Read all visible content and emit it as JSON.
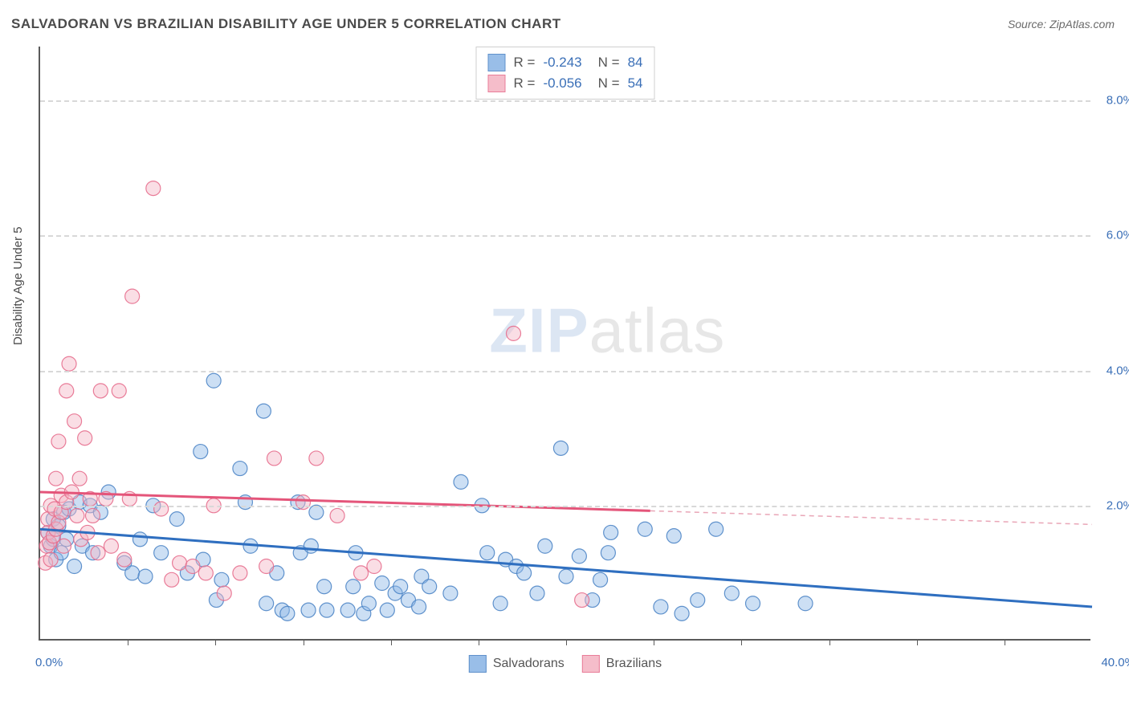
{
  "title": "SALVADORAN VS BRAZILIAN DISABILITY AGE UNDER 5 CORRELATION CHART",
  "source_label": "Source:",
  "source_name": "ZipAtlas.com",
  "ylabel": "Disability Age Under 5",
  "watermark_a": "ZIP",
  "watermark_b": "atlas",
  "chart": {
    "type": "scatter",
    "xlim": [
      0,
      40
    ],
    "ylim": [
      0,
      8.8
    ],
    "xticks_major": [
      0,
      40
    ],
    "xticks_minor": [
      3.33,
      6.67,
      10,
      13.33,
      16.67,
      20,
      23.33,
      26.67,
      30,
      33.33,
      36.67
    ],
    "yticks": [
      2,
      4,
      6,
      8
    ],
    "xtick_labels": [
      "0.0%",
      "40.0%"
    ],
    "ytick_labels": [
      "2.0%",
      "4.0%",
      "6.0%",
      "8.0%"
    ],
    "background_color": "#ffffff",
    "grid_color": "#d8d8d8",
    "axis_color": "#5a5a5a",
    "tick_label_color": "#3a6fb7",
    "label_fontsize": 15,
    "title_fontsize": 17,
    "marker_radius": 9,
    "marker_fill_opacity": 0.45,
    "marker_stroke_opacity": 0.9,
    "series": [
      {
        "name": "Salvadorans",
        "color_fill": "#8fb7e6",
        "color_stroke": "#4f86c6",
        "trend": {
          "y0": 1.65,
          "y1": 0.5,
          "x_solid_end": 40,
          "line_color": "#2f6fc0",
          "line_width": 3
        },
        "stats": {
          "R": "-0.243",
          "N": "84"
        },
        "points": [
          [
            0.3,
            1.6
          ],
          [
            0.4,
            1.4
          ],
          [
            0.5,
            1.5
          ],
          [
            0.5,
            1.8
          ],
          [
            0.6,
            1.2
          ],
          [
            0.7,
            1.7
          ],
          [
            0.8,
            1.3
          ],
          [
            0.9,
            1.9
          ],
          [
            1.0,
            1.5
          ],
          [
            1.1,
            1.95
          ],
          [
            1.3,
            1.1
          ],
          [
            1.5,
            2.05
          ],
          [
            1.6,
            1.4
          ],
          [
            1.9,
            2.0
          ],
          [
            2.0,
            1.3
          ],
          [
            2.3,
            1.9
          ],
          [
            2.6,
            2.2
          ],
          [
            3.2,
            1.15
          ],
          [
            3.5,
            1.0
          ],
          [
            3.8,
            1.5
          ],
          [
            4.0,
            0.95
          ],
          [
            4.3,
            2.0
          ],
          [
            4.6,
            1.3
          ],
          [
            5.2,
            1.8
          ],
          [
            5.6,
            1.0
          ],
          [
            6.1,
            2.8
          ],
          [
            6.2,
            1.2
          ],
          [
            6.6,
            3.85
          ],
          [
            6.7,
            0.6
          ],
          [
            6.9,
            0.9
          ],
          [
            7.6,
            2.55
          ],
          [
            7.8,
            2.05
          ],
          [
            8.0,
            1.4
          ],
          [
            8.5,
            3.4
          ],
          [
            8.6,
            0.55
          ],
          [
            9.0,
            1.0
          ],
          [
            9.2,
            0.45
          ],
          [
            9.4,
            0.4
          ],
          [
            9.8,
            2.05
          ],
          [
            9.9,
            1.3
          ],
          [
            10.2,
            0.45
          ],
          [
            10.3,
            1.4
          ],
          [
            10.5,
            1.9
          ],
          [
            10.8,
            0.8
          ],
          [
            10.9,
            0.45
          ],
          [
            11.7,
            0.45
          ],
          [
            11.9,
            0.8
          ],
          [
            12.0,
            1.3
          ],
          [
            12.3,
            0.4
          ],
          [
            12.5,
            0.55
          ],
          [
            13.0,
            0.85
          ],
          [
            13.2,
            0.45
          ],
          [
            13.5,
            0.7
          ],
          [
            13.7,
            0.8
          ],
          [
            14.0,
            0.6
          ],
          [
            14.4,
            0.5
          ],
          [
            14.5,
            0.95
          ],
          [
            14.8,
            0.8
          ],
          [
            15.6,
            0.7
          ],
          [
            16.0,
            2.35
          ],
          [
            16.8,
            2.0
          ],
          [
            17.0,
            1.3
          ],
          [
            17.5,
            0.55
          ],
          [
            17.7,
            1.2
          ],
          [
            18.1,
            1.1
          ],
          [
            18.4,
            1.0
          ],
          [
            18.9,
            0.7
          ],
          [
            19.2,
            1.4
          ],
          [
            19.8,
            2.85
          ],
          [
            20.0,
            0.95
          ],
          [
            20.5,
            1.25
          ],
          [
            21.0,
            0.6
          ],
          [
            21.3,
            0.9
          ],
          [
            21.6,
            1.3
          ],
          [
            21.7,
            1.6
          ],
          [
            23.0,
            1.65
          ],
          [
            23.6,
            0.5
          ],
          [
            24.1,
            1.55
          ],
          [
            24.4,
            0.4
          ],
          [
            25.7,
            1.65
          ],
          [
            27.1,
            0.55
          ],
          [
            29.1,
            0.55
          ],
          [
            25.0,
            0.6
          ],
          [
            26.3,
            0.7
          ]
        ]
      },
      {
        "name": "Brazilians",
        "color_fill": "#f4b6c5",
        "color_stroke": "#e76f8e",
        "trend": {
          "y0": 2.2,
          "y1": 1.72,
          "x_solid_end": 23.2,
          "line_color": "#e4557a",
          "line_width": 3,
          "dash_color": "#e9a6b7"
        },
        "stats": {
          "R": "-0.056",
          "N": "54"
        },
        "points": [
          [
            0.2,
            1.15
          ],
          [
            0.25,
            1.4
          ],
          [
            0.3,
            1.6
          ],
          [
            0.3,
            1.8
          ],
          [
            0.35,
            1.45
          ],
          [
            0.4,
            2.0
          ],
          [
            0.4,
            1.2
          ],
          [
            0.5,
            1.55
          ],
          [
            0.55,
            1.95
          ],
          [
            0.6,
            2.4
          ],
          [
            0.6,
            1.65
          ],
          [
            0.7,
            2.95
          ],
          [
            0.7,
            1.75
          ],
          [
            0.8,
            1.9
          ],
          [
            0.8,
            2.15
          ],
          [
            0.9,
            1.4
          ],
          [
            1.0,
            3.7
          ],
          [
            1.0,
            2.05
          ],
          [
            1.1,
            4.1
          ],
          [
            1.2,
            2.2
          ],
          [
            1.3,
            3.25
          ],
          [
            1.4,
            1.85
          ],
          [
            1.5,
            2.4
          ],
          [
            1.55,
            1.5
          ],
          [
            1.7,
            3.0
          ],
          [
            1.8,
            1.6
          ],
          [
            1.9,
            2.1
          ],
          [
            2.0,
            1.85
          ],
          [
            2.2,
            1.3
          ],
          [
            2.3,
            3.7
          ],
          [
            2.5,
            2.1
          ],
          [
            2.7,
            1.4
          ],
          [
            3.0,
            3.7
          ],
          [
            3.2,
            1.2
          ],
          [
            3.4,
            2.1
          ],
          [
            3.5,
            5.1
          ],
          [
            4.3,
            6.7
          ],
          [
            4.6,
            1.95
          ],
          [
            5.0,
            0.9
          ],
          [
            5.3,
            1.15
          ],
          [
            5.8,
            1.1
          ],
          [
            6.3,
            1.0
          ],
          [
            6.6,
            2.0
          ],
          [
            7.0,
            0.7
          ],
          [
            7.6,
            1.0
          ],
          [
            8.6,
            1.1
          ],
          [
            8.9,
            2.7
          ],
          [
            10.0,
            2.05
          ],
          [
            10.5,
            2.7
          ],
          [
            11.3,
            1.85
          ],
          [
            12.2,
            1.0
          ],
          [
            12.7,
            1.1
          ],
          [
            18.0,
            4.55
          ],
          [
            20.6,
            0.6
          ]
        ]
      }
    ]
  },
  "legend_top_labels": {
    "R": "R  =",
    "N": "N  ="
  },
  "legend_bottom": {
    "a": "Salvadorans",
    "b": "Brazilians"
  }
}
